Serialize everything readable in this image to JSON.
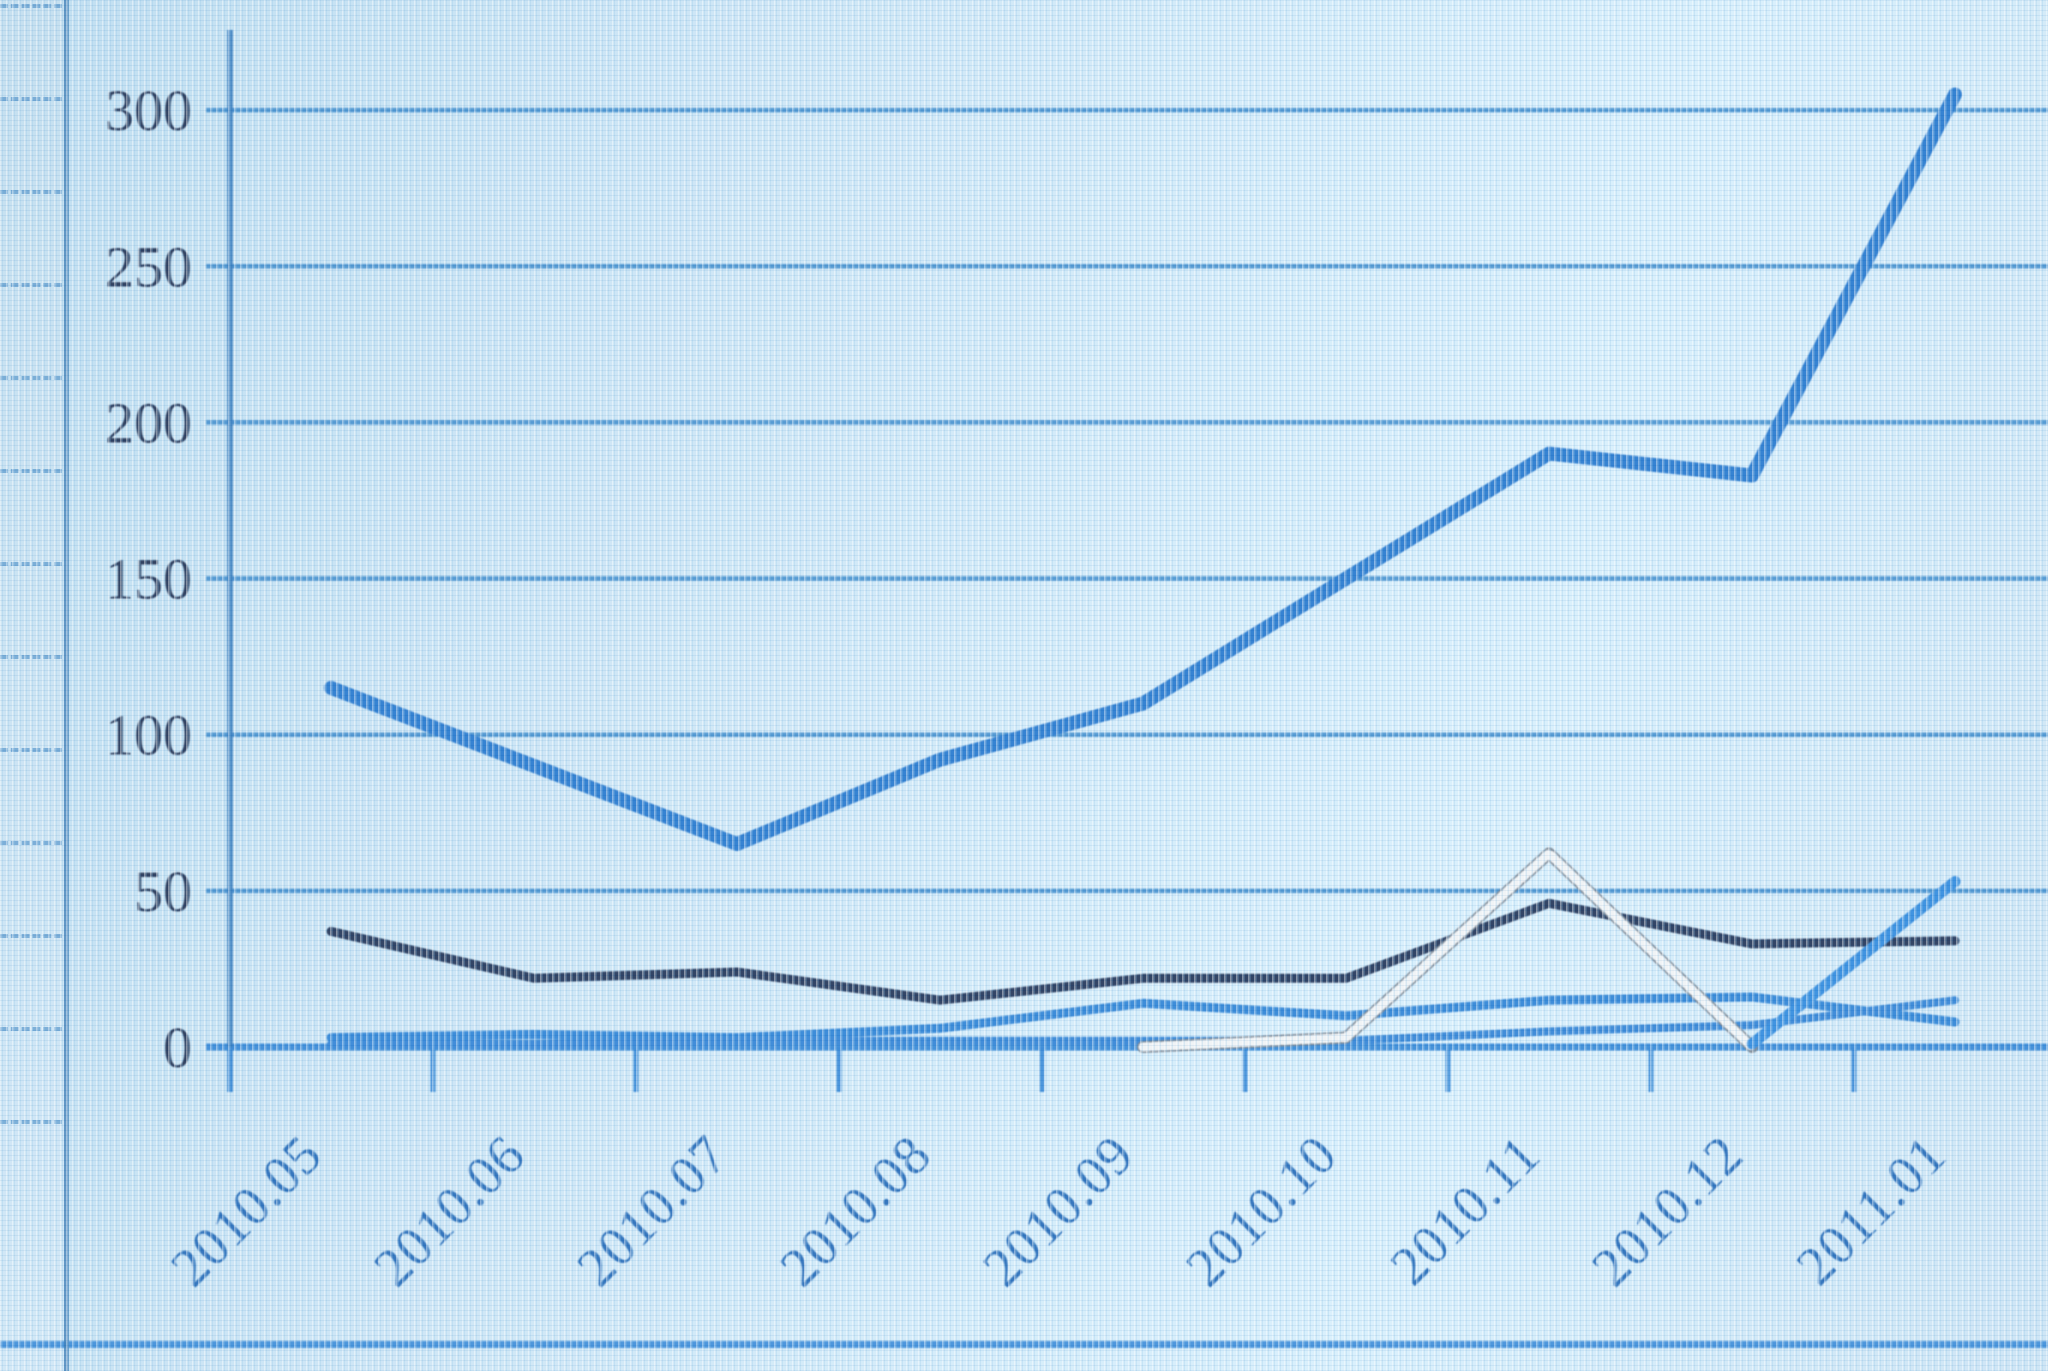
{
  "chart_data": {
    "type": "line",
    "title": "",
    "categories": [
      "2010.05",
      "2010.06",
      "2010.07",
      "2010.08",
      "2010.09",
      "2010.10",
      "2010.11",
      "2010.12",
      "2011.01"
    ],
    "yticks": [
      0,
      50,
      100,
      150,
      200,
      250,
      300
    ],
    "ylim": [
      0,
      310
    ],
    "grid": true,
    "legend_position": "none",
    "colors": {
      "background": "#cde6f6",
      "gridline": "#2e7fc4",
      "axis_line": "#2b7fd0",
      "y_tick_label": "#1a2b4c",
      "x_tick_label": "#2166b2",
      "window_border": "#2a6fae"
    },
    "series": [
      {
        "name": "medium-blue-wavy",
        "color": "#2b7fd0",
        "width": 9,
        "style": "solid",
        "values": [
          3,
          4,
          3,
          6,
          14,
          10,
          15,
          16,
          8
        ]
      },
      {
        "name": "flat-low-blue-rise",
        "color": "#2e7fd0",
        "width": 8,
        "style": "solid",
        "values": [
          1,
          1,
          2,
          2,
          2,
          2,
          5,
          7,
          15
        ]
      },
      {
        "name": "dark-navy",
        "color": "#1c2f52",
        "width": 9,
        "style": "solid",
        "values": [
          37,
          22,
          24,
          15,
          22,
          22,
          46,
          33,
          34
        ]
      },
      {
        "name": "white-hatched",
        "color": "#eef2f5",
        "underlay_color": "#76828f",
        "width": 9,
        "style": "hatched",
        "values": [
          null,
          null,
          null,
          null,
          0,
          3,
          62,
          0,
          null
        ]
      },
      {
        "name": "steep-riser-blue",
        "color": "#2e86d8",
        "width": 11,
        "style": "solid",
        "values": [
          null,
          null,
          null,
          null,
          null,
          null,
          null,
          1,
          53
        ]
      },
      {
        "name": "primary-thick-blue",
        "color": "#2273c8",
        "width": 14,
        "style": "solid",
        "values": [
          115,
          90,
          65,
          92,
          110,
          150,
          190,
          183,
          305
        ]
      }
    ]
  }
}
